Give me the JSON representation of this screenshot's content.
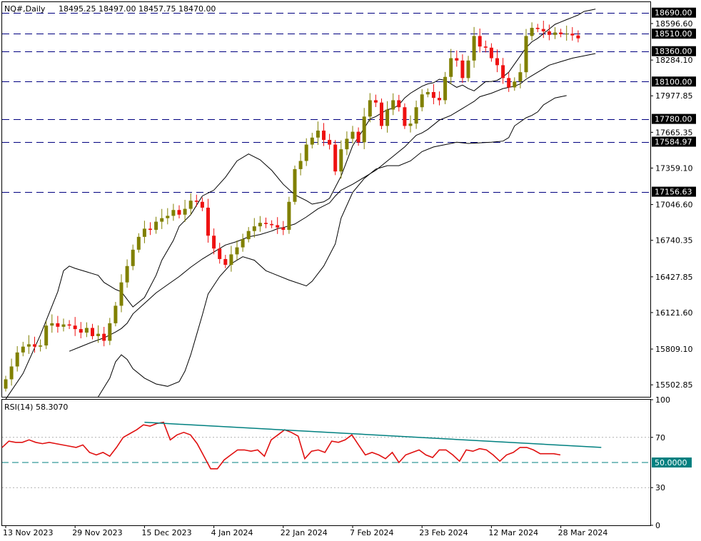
{
  "header": {
    "symbol_tf": "NQ#,Daily",
    "ohlc": "18495.25 18497.00 18457.75 18470.00"
  },
  "rsi_header": "RSI(14) 58.3070",
  "colors": {
    "bull": "#808000",
    "bear": "#ee1111",
    "band": "#000000",
    "level_line": "#000080",
    "rsi_line": "#e01010",
    "trend_line": "#008080",
    "label_bg": "#000000",
    "label_fg": "#ffffff"
  },
  "chart_data": [
    {
      "type": "candlestick",
      "title": "NQ#,Daily",
      "price_range": [
        15400,
        18780
      ],
      "price_ticks": [
        15502.85,
        15809.1,
        16121.6,
        16427.85,
        16740.35,
        17046.6,
        17359.1,
        17665.35,
        17977.85,
        18284.1,
        18596.6
      ],
      "date_ticks": [
        "13 Nov 2023",
        "29 Nov 2023",
        "15 Dec 2023",
        "4 Jan 2024",
        "22 Jan 2024",
        "7 Feb 2024",
        "23 Feb 2024",
        "12 Mar 2024",
        "28 Mar 2024"
      ],
      "date_tick_bars": [
        0,
        12,
        24,
        36,
        48,
        60,
        72,
        84,
        96
      ],
      "levels": [
        {
          "value": 18690.0,
          "label": "18690.00"
        },
        {
          "value": 18510.0,
          "label": "18510.00"
        },
        {
          "value": 18360.0,
          "label": "18360.00"
        },
        {
          "value": 18100.0,
          "label": "18100.00"
        },
        {
          "value": 17780.0,
          "label": "17780.00"
        },
        {
          "value": 17584.97,
          "label": "17584.97"
        },
        {
          "value": 17156.63,
          "label": "17156.63"
        }
      ],
      "hidden_labels": [
        "18470.00"
      ],
      "ohlc_series": [
        15550,
        15660,
        15780,
        15830,
        15850,
        15830,
        15840,
        16010,
        16030,
        16000,
        16020,
        16010,
        15980,
        15950,
        15990,
        15920,
        15940,
        15880,
        16030,
        16180,
        16380,
        16520,
        16660,
        16770,
        16840,
        16830,
        16900,
        16930,
        16950,
        17000,
        16960,
        17010,
        17080,
        17070,
        17020,
        16780,
        16670,
        16580,
        16530,
        16620,
        16680,
        16750,
        16820,
        16860,
        16890,
        16880,
        16870,
        16850,
        16830,
        17070,
        17350,
        17420,
        17560,
        17620,
        17680,
        17600,
        17560,
        17330,
        17520,
        17610,
        17670,
        17580,
        17800,
        17940,
        17920,
        17720,
        17860,
        17940,
        17880,
        17720,
        17740,
        17880,
        17990,
        18010,
        17960,
        17940,
        18140,
        18300,
        18280,
        18130,
        18280,
        18490,
        18400,
        18390,
        18300,
        18240,
        18130,
        18050,
        18100,
        18180,
        18490,
        18560,
        18550,
        18530,
        18500,
        18520,
        18505,
        18510,
        18495,
        18470
      ],
      "band_upper": [
        15380,
        15600,
        15930,
        16300,
        16480,
        16520,
        16500,
        16470,
        16440,
        16380,
        16320,
        16300,
        16170,
        16250,
        16440,
        16570,
        16740,
        16860,
        16960,
        17040,
        17120,
        17170,
        17280,
        17420,
        17480,
        17430,
        17340,
        17220,
        17130,
        17080,
        17050,
        17060,
        17070,
        17100,
        17290,
        17550,
        17700,
        17780,
        17800,
        17830,
        17860,
        17870,
        17900,
        17960,
        18000,
        18030,
        18060,
        18080,
        18090,
        18120,
        18110,
        18080,
        18050,
        18070,
        18040,
        18020,
        18060,
        18100,
        18100,
        18110,
        18140,
        18180,
        18250,
        18320,
        18390,
        18440,
        18470,
        18510,
        18550,
        18590,
        18610,
        18630,
        18650,
        18670,
        18700,
        18720
      ],
      "band_upper_bars": [
        0,
        3,
        6,
        9,
        10,
        11,
        12,
        14,
        16,
        17,
        19,
        20,
        22,
        24,
        26,
        27,
        29,
        30,
        32,
        33,
        34,
        36,
        38,
        40,
        42,
        44,
        46,
        48,
        50,
        52,
        53,
        54,
        55,
        56,
        58,
        60,
        62,
        63,
        64,
        65,
        66,
        67,
        68,
        69,
        70,
        71,
        72,
        73,
        74,
        75,
        76,
        77,
        78,
        79,
        80,
        81,
        82,
        83,
        84,
        85,
        86,
        87,
        88,
        89,
        90,
        91,
        92,
        93,
        94,
        95,
        96,
        97,
        98,
        99,
        100,
        102
      ],
      "band_middle": [
        15790,
        15830,
        15870,
        15905,
        15930,
        15955,
        15985,
        16030,
        16110,
        16200,
        16290,
        16360,
        16430,
        16510,
        16580,
        16640,
        16700,
        16730,
        16770,
        16790,
        16820,
        16840,
        16850,
        16880,
        16940,
        17010,
        17060,
        17120,
        17170,
        17220,
        17250,
        17280,
        17310,
        17340,
        17380,
        17420,
        17460,
        17500,
        17540,
        17590,
        17640,
        17660,
        17690,
        17730,
        17770,
        17790,
        17810,
        17840,
        17870,
        17900,
        17930,
        17970,
        18000,
        18040,
        18060,
        18080,
        18120,
        18150,
        18180,
        18210,
        18240,
        18270,
        18300,
        18320,
        18330,
        18340
      ],
      "band_middle_bars": [
        11,
        13,
        15,
        17,
        18,
        19,
        20,
        21,
        22,
        24,
        26,
        28,
        30,
        32,
        34,
        36,
        38,
        40,
        42,
        44,
        46,
        47,
        48,
        50,
        52,
        54,
        56,
        57,
        58,
        60,
        61,
        62,
        63,
        64,
        65,
        66,
        67,
        68,
        69,
        70,
        71,
        72,
        73,
        74,
        75,
        76,
        77,
        78,
        79,
        80,
        81,
        82,
        84,
        86,
        88,
        89,
        90,
        91,
        92,
        93,
        94,
        96,
        98,
        100,
        101,
        102
      ],
      "band_lower": [
        15400,
        15560,
        15700,
        15760,
        15720,
        15640,
        15560,
        15510,
        15490,
        15530,
        15620,
        15760,
        15930,
        16100,
        16280,
        16430,
        16540,
        16600,
        16570,
        16480,
        16400,
        16350,
        16390,
        16520,
        16710,
        16930,
        17150,
        17270,
        17350,
        17380,
        17380,
        17420,
        17500,
        17540,
        17560,
        17580,
        17570,
        17580,
        17590,
        17620,
        17720,
        17790,
        17810,
        17840,
        17900,
        17960,
        17980
      ],
      "band_lower_bars": [
        16,
        18,
        19,
        20,
        21,
        22,
        24,
        26,
        28,
        30,
        31,
        32,
        33,
        34,
        35,
        37,
        39,
        41,
        43,
        45,
        49,
        52,
        53,
        55,
        57,
        58,
        60,
        62,
        64,
        66,
        68,
        70,
        72,
        74,
        76,
        78,
        80,
        84,
        86,
        87,
        88,
        90,
        91,
        92,
        93,
        95,
        97
      ]
    },
    {
      "type": "line",
      "title": "RSI(14) 58.3070",
      "ylim": [
        0,
        100
      ],
      "y_ticks": [
        100,
        70,
        30,
        0
      ],
      "level_label": "50.0000",
      "level": 50,
      "rsi_values": [
        62,
        67,
        66,
        66,
        68,
        66,
        65,
        66,
        65,
        64,
        63,
        62,
        64,
        58,
        56,
        58,
        55,
        62,
        70,
        73,
        76,
        80,
        79,
        81,
        82,
        68,
        72,
        74,
        72,
        65,
        55,
        45,
        45,
        52,
        56,
        60,
        60,
        59,
        60,
        55,
        68,
        72,
        76,
        74,
        71,
        53,
        59,
        60,
        58,
        67,
        66,
        68,
        72,
        64,
        56,
        58,
        56,
        53,
        58,
        50,
        56,
        58,
        60,
        56,
        54,
        60,
        60,
        56,
        51,
        60,
        59,
        61,
        60,
        56,
        51,
        56,
        58,
        62,
        62,
        60,
        57,
        57,
        57,
        56
      ],
      "trendline": {
        "x0_bar": 24,
        "y0": 82,
        "x1_bar": 103,
        "y1": 62
      }
    }
  ]
}
